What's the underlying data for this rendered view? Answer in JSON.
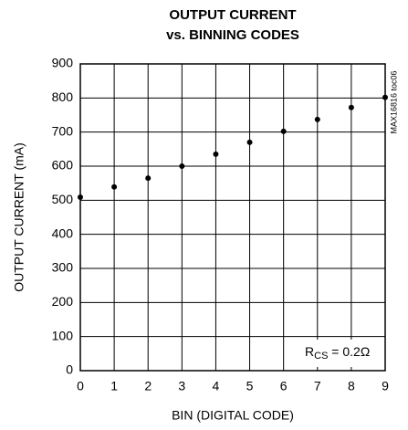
{
  "chart_data": {
    "type": "scatter",
    "title": [
      "OUTPUT CURRENT",
      "vs. BINNING CODES"
    ],
    "x_label": "BIN (DIGITAL CODE)",
    "y_label": "OUTPUT CURRENT (mA)",
    "side_note": "MAX16816 toc06",
    "annotation": {
      "text": "R",
      "subscript": "CS",
      "suffix": " = 0.2Ω"
    },
    "x": [
      0,
      1,
      2,
      3,
      4,
      5,
      6,
      7,
      8,
      9
    ],
    "values": [
      509,
      539,
      565,
      600,
      635,
      670,
      702,
      737,
      772,
      802
    ],
    "color": "#000000",
    "xlim": [
      0,
      9
    ],
    "xticks": [
      0,
      1,
      2,
      3,
      4,
      5,
      6,
      7,
      8,
      9
    ],
    "ylim": [
      0,
      900
    ],
    "yticks": [
      0,
      100,
      200,
      300,
      400,
      500,
      600,
      700,
      800,
      900
    ],
    "grid": true
  }
}
